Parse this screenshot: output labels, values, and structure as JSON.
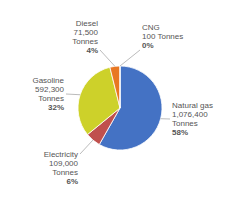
{
  "chart_data": {
    "type": "pie",
    "categories": [
      "Natural gas",
      "Electricity",
      "Gasoline",
      "Diesel",
      "CNG"
    ],
    "values": [
      1076400,
      109000,
      592300,
      71500,
      100
    ],
    "value_labels": [
      "1,076,400\nTonnes",
      "109,000\nTonnes",
      "592,300\nTonnes",
      "71,500\nTonnes",
      "100 Tonnes"
    ],
    "percentages": [
      58,
      6,
      32,
      4,
      0
    ],
    "percentage_labels": [
      "58%",
      "6%",
      "32%",
      "4%",
      "0%"
    ],
    "colors": [
      "#4472C4",
      "#C0504D",
      "#CDD12A",
      "#E87722",
      "#4472C4"
    ],
    "data_labels": true
  }
}
